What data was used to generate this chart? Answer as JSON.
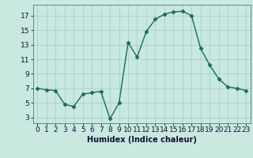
{
  "x": [
    0,
    1,
    2,
    3,
    4,
    5,
    6,
    7,
    8,
    9,
    10,
    11,
    12,
    13,
    14,
    15,
    16,
    17,
    18,
    19,
    20,
    21,
    22,
    23
  ],
  "y": [
    7.0,
    6.8,
    6.7,
    4.8,
    4.5,
    6.2,
    6.4,
    6.6,
    2.8,
    5.0,
    13.3,
    11.3,
    14.8,
    16.5,
    17.2,
    17.5,
    17.6,
    17.0,
    12.5,
    10.2,
    8.3,
    7.2,
    7.0,
    6.7
  ],
  "line_color": "#1a6b5a",
  "marker": "D",
  "marker_size": 2.5,
  "bg_color": "#c8e8e0",
  "grid_color": "#a8d0cc",
  "xlabel": "Humidex (Indice chaleur)",
  "xlabel_fontsize": 7,
  "tick_fontsize": 6.5,
  "yticks": [
    3,
    5,
    7,
    9,
    11,
    13,
    15,
    17
  ],
  "xticks": [
    0,
    1,
    2,
    3,
    4,
    5,
    6,
    7,
    8,
    9,
    10,
    11,
    12,
    13,
    14,
    15,
    16,
    17,
    18,
    19,
    20,
    21,
    22,
    23
  ],
  "ylim": [
    2.2,
    18.5
  ],
  "xlim": [
    -0.5,
    23.5
  ]
}
